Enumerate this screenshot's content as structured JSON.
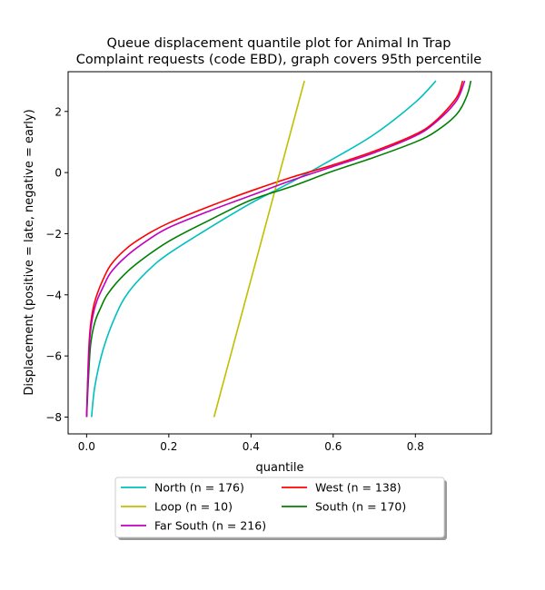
{
  "chart_data": {
    "type": "line",
    "title_line1": "Queue displacement quantile plot for Animal In Trap",
    "title_line2": "Complaint  requests (code EBD), graph covers 95th percentile",
    "xlabel": "quantile",
    "ylabel": "Displacement (positive = late, negative = early)",
    "xlim": [
      -0.045,
      0.985
    ],
    "ylim": [
      -8.55,
      3.3
    ],
    "x_ticks": [
      0.0,
      0.2,
      0.4,
      0.6,
      0.8
    ],
    "x_tick_labels": [
      "0.0",
      "0.2",
      "0.4",
      "0.6",
      "0.8"
    ],
    "y_ticks": [
      -8,
      -6,
      -4,
      -2,
      0,
      2
    ],
    "y_tick_labels": [
      "−8",
      "−6",
      "−4",
      "−2",
      "0",
      "2"
    ],
    "grid": false,
    "legend_position": "below plot, centered, two columns",
    "series": [
      {
        "name": "North (n = 176)",
        "color": "#00bfbf",
        "x": [
          0.012,
          0.02,
          0.04,
          0.07,
          0.1,
          0.15,
          0.2,
          0.3,
          0.4,
          0.5,
          0.6,
          0.7,
          0.8,
          0.85
        ],
        "y": [
          -8.0,
          -7.0,
          -5.8,
          -4.7,
          -3.95,
          -3.2,
          -2.65,
          -1.8,
          -1.0,
          -0.3,
          0.45,
          1.25,
          2.3,
          3.0
        ]
      },
      {
        "name": "West (n = 138)",
        "color": "#ff0000",
        "x": [
          0.0,
          0.004,
          0.008,
          0.015,
          0.025,
          0.04,
          0.06,
          0.1,
          0.15,
          0.2,
          0.3,
          0.4,
          0.5,
          0.6,
          0.7,
          0.8,
          0.85,
          0.9,
          0.915
        ],
        "y": [
          -8.0,
          -6.2,
          -5.2,
          -4.5,
          -4.0,
          -3.5,
          -3.0,
          -2.45,
          -2.0,
          -1.65,
          -1.1,
          -0.6,
          -0.15,
          0.25,
          0.7,
          1.25,
          1.7,
          2.45,
          3.0
        ]
      },
      {
        "name": "Loop (n = 10)",
        "color": "#bfbf00",
        "x": [
          0.31,
          0.53
        ],
        "y": [
          -8.0,
          3.0
        ]
      },
      {
        "name": "South (n = 170)",
        "color": "#008000",
        "x": [
          0.0,
          0.005,
          0.01,
          0.02,
          0.035,
          0.05,
          0.08,
          0.12,
          0.2,
          0.3,
          0.4,
          0.5,
          0.6,
          0.7,
          0.8,
          0.85,
          0.9,
          0.925,
          0.935
        ],
        "y": [
          -8.0,
          -6.6,
          -5.6,
          -4.9,
          -4.4,
          -4.0,
          -3.5,
          -3.0,
          -2.25,
          -1.55,
          -0.9,
          -0.45,
          0.05,
          0.5,
          1.0,
          1.35,
          1.9,
          2.5,
          3.0
        ]
      },
      {
        "name": "Far South (n = 216)",
        "color": "#bf00bf",
        "x": [
          0.0,
          0.004,
          0.008,
          0.015,
          0.025,
          0.04,
          0.06,
          0.1,
          0.15,
          0.2,
          0.3,
          0.4,
          0.5,
          0.6,
          0.7,
          0.8,
          0.85,
          0.9,
          0.92
        ],
        "y": [
          -8.0,
          -6.4,
          -5.4,
          -4.7,
          -4.2,
          -3.75,
          -3.25,
          -2.7,
          -2.2,
          -1.8,
          -1.25,
          -0.75,
          -0.25,
          0.2,
          0.65,
          1.2,
          1.65,
          2.35,
          3.0
        ]
      }
    ]
  }
}
